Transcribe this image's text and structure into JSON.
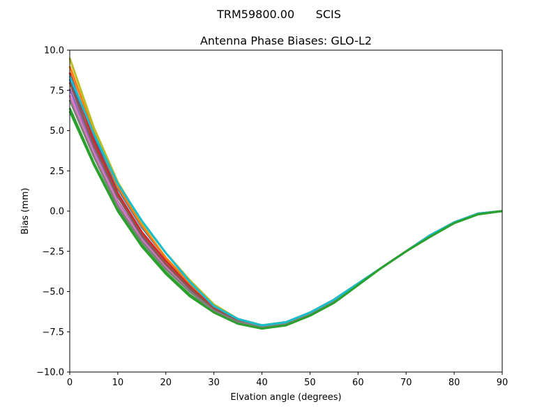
{
  "suptitle": "TRM59800.00      SCIS",
  "chart_data": {
    "type": "line",
    "title": "Antenna Phase Biases: GLO-L2",
    "xlabel": "Elvation angle (degrees)",
    "ylabel": "Bias (mm)",
    "xlim": [
      0,
      90
    ],
    "ylim": [
      -10,
      10
    ],
    "xticks": [
      "0",
      "10",
      "20",
      "30",
      "40",
      "50",
      "60",
      "70",
      "80",
      "90"
    ],
    "yticks": [
      "10.0",
      "7.5",
      "5.0",
      "2.5",
      "0.0",
      "−2.5",
      "−5.0",
      "−7.5",
      "−10.0"
    ],
    "grid": false,
    "x": [
      0,
      5,
      10,
      15,
      20,
      25,
      30,
      35,
      40,
      45,
      50,
      55,
      60,
      65,
      70,
      75,
      80,
      85,
      90
    ],
    "series": [
      {
        "color": "#1f77b4",
        "values": [
          8.2,
          4.6,
          1.4,
          -1.0,
          -2.9,
          -4.6,
          -6.0,
          -6.8,
          -7.1,
          -7.0,
          -6.4,
          -5.5,
          -4.5,
          -3.5,
          -2.5,
          -1.5,
          -0.7,
          -0.15,
          0.0
        ]
      },
      {
        "color": "#ff7f0e",
        "values": [
          9.0,
          4.9,
          1.5,
          -0.9,
          -2.9,
          -4.5,
          -5.9,
          -6.7,
          -7.1,
          -6.9,
          -6.3,
          -5.5,
          -4.5,
          -3.5,
          -2.5,
          -1.5,
          -0.7,
          -0.15,
          0.0
        ]
      },
      {
        "color": "#2ca02c",
        "values": [
          6.4,
          3.0,
          0.1,
          -2.1,
          -3.8,
          -5.2,
          -6.3,
          -7.0,
          -7.3,
          -7.1,
          -6.5,
          -5.7,
          -4.6,
          -3.5,
          -2.5,
          -1.6,
          -0.75,
          -0.2,
          0.0
        ]
      },
      {
        "color": "#d62728",
        "values": [
          8.6,
          4.4,
          1.1,
          -1.3,
          -3.1,
          -4.7,
          -6.0,
          -6.8,
          -7.1,
          -7.0,
          -6.4,
          -5.5,
          -4.5,
          -3.5,
          -2.5,
          -1.5,
          -0.7,
          -0.15,
          0.0
        ]
      },
      {
        "color": "#9467bd",
        "values": [
          7.6,
          3.8,
          0.6,
          -1.7,
          -3.4,
          -4.9,
          -6.1,
          -6.9,
          -7.2,
          -7.0,
          -6.4,
          -5.6,
          -4.5,
          -3.5,
          -2.5,
          -1.5,
          -0.7,
          -0.15,
          0.0
        ]
      },
      {
        "color": "#8c564b",
        "values": [
          8.0,
          4.1,
          0.9,
          -1.5,
          -3.3,
          -4.8,
          -6.1,
          -6.8,
          -7.2,
          -7.0,
          -6.4,
          -5.6,
          -4.5,
          -3.5,
          -2.5,
          -1.5,
          -0.7,
          -0.15,
          0.0
        ]
      },
      {
        "color": "#e377c2",
        "values": [
          7.2,
          3.6,
          0.5,
          -1.8,
          -3.5,
          -5.0,
          -6.2,
          -6.9,
          -7.2,
          -7.0,
          -6.4,
          -5.6,
          -4.5,
          -3.5,
          -2.5,
          -1.5,
          -0.7,
          -0.15,
          0.0
        ]
      },
      {
        "color": "#7f7f7f",
        "values": [
          6.9,
          3.4,
          0.3,
          -1.9,
          -3.6,
          -5.0,
          -6.2,
          -6.9,
          -7.2,
          -7.0,
          -6.4,
          -5.6,
          -4.5,
          -3.5,
          -2.5,
          -1.5,
          -0.7,
          -0.15,
          0.0
        ]
      },
      {
        "color": "#bcbd22",
        "values": [
          9.5,
          5.2,
          1.8,
          -0.7,
          -2.6,
          -4.3,
          -5.8,
          -6.7,
          -7.1,
          -6.9,
          -6.3,
          -5.5,
          -4.5,
          -3.5,
          -2.5,
          -1.5,
          -0.7,
          -0.15,
          0.0
        ]
      },
      {
        "color": "#17becf",
        "values": [
          8.4,
          4.8,
          1.7,
          -0.6,
          -2.6,
          -4.4,
          -5.9,
          -6.7,
          -7.1,
          -6.9,
          -6.3,
          -5.5,
          -4.5,
          -3.5,
          -2.5,
          -1.5,
          -0.7,
          -0.15,
          0.0
        ]
      },
      {
        "color": "#2ca02c",
        "values": [
          6.2,
          2.9,
          0.0,
          -2.2,
          -3.9,
          -5.3,
          -6.3,
          -7.0,
          -7.3,
          -7.1,
          -6.5,
          -5.7,
          -4.6,
          -3.5,
          -2.5,
          -1.6,
          -0.75,
          -0.2,
          0.0
        ]
      }
    ]
  }
}
